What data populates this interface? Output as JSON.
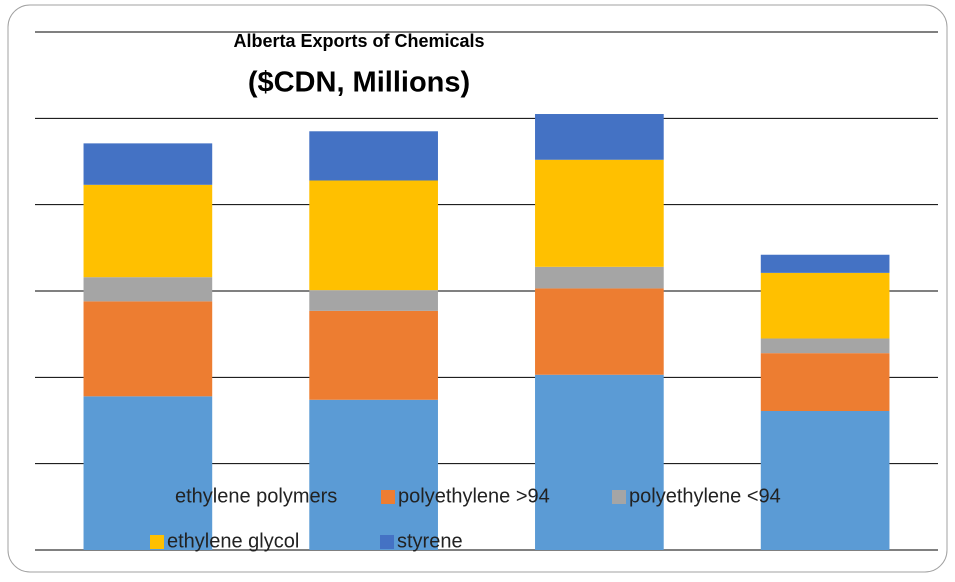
{
  "chart_data": {
    "type": "stacked_bar",
    "title": "Alberta Exports of Chemicals",
    "subtitle": "($CDN, Millions)",
    "categories": [
      null,
      null,
      null,
      null
    ],
    "series": [
      {
        "name": "ethylene polymers",
        "color": "#5b9bd5",
        "values": [
          1.78,
          1.74,
          2.03,
          1.61
        ]
      },
      {
        "name": "polyethylene >94",
        "color": "#ed7d31",
        "values": [
          1.1,
          1.03,
          1.0,
          0.67
        ]
      },
      {
        "name": "polyethylene <94",
        "color": "#a5a5a5",
        "values": [
          0.28,
          0.24,
          0.25,
          0.17
        ]
      },
      {
        "name": "ethylene glycol",
        "color": "#ffc000",
        "values": [
          1.07,
          1.27,
          1.24,
          0.76
        ]
      },
      {
        "name": "styrene",
        "color": "#4472c4",
        "values": [
          0.48,
          0.57,
          0.53,
          0.21
        ]
      }
    ],
    "ylim": [
      0,
      6
    ],
    "yticks": [
      0,
      1,
      2,
      3,
      4,
      5,
      6
    ],
    "grid": true,
    "legend": "bottom"
  }
}
